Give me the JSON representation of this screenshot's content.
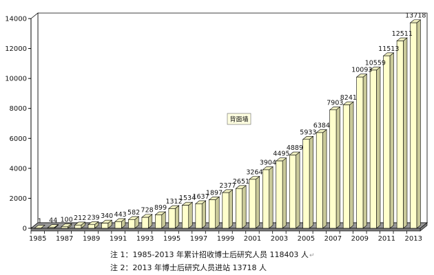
{
  "chart_data": {
    "type": "bar",
    "style": "3d",
    "title": "",
    "xlabel": "",
    "ylabel": "",
    "ylim": [
      0,
      14000
    ],
    "yticks": [
      0,
      2000,
      4000,
      6000,
      8000,
      10000,
      12000,
      14000
    ],
    "xtick_labels": [
      "1985",
      "1987",
      "1989",
      "1991",
      "1993",
      "1995",
      "1997",
      "1999",
      "2001",
      "2003",
      "2005",
      "2007",
      "2009",
      "2011",
      "2013"
    ],
    "grid": false,
    "legend": "none",
    "categories": [
      "1985",
      "1986",
      "1987",
      "1988",
      "1989",
      "1990",
      "1991",
      "1992",
      "1993",
      "1994",
      "1995",
      "1996",
      "1997",
      "1998",
      "1999",
      "2000",
      "2001",
      "2002",
      "2003",
      "2004",
      "2005",
      "2006",
      "2007",
      "2008",
      "2009",
      "2010",
      "2011",
      "2012",
      "2013"
    ],
    "values": [
      1,
      44,
      100,
      212,
      239,
      340,
      443,
      582,
      728,
      899,
      1312,
      1534,
      1637,
      1897,
      2377,
      2651,
      3264,
      3904,
      4495,
      4889,
      5933,
      6384,
      7903,
      8241,
      10093,
      10559,
      11513,
      12511,
      13718
    ],
    "colors": {
      "bar_front": "#ffffcc",
      "bar_side": "#c9c999",
      "bar_top": "#ededbe",
      "bar_stroke": "#000000",
      "floor": "#999999",
      "floor_side": "#7a7a7a",
      "wall": "#ffffff"
    }
  },
  "tooltip": {
    "label": "背面墙"
  },
  "notes": {
    "note1": "注 1：1985-2013 年累计招收博士后研究人员 118403 人",
    "note2": "注 2：2013 年博士后研究人员进站 13718 人"
  }
}
